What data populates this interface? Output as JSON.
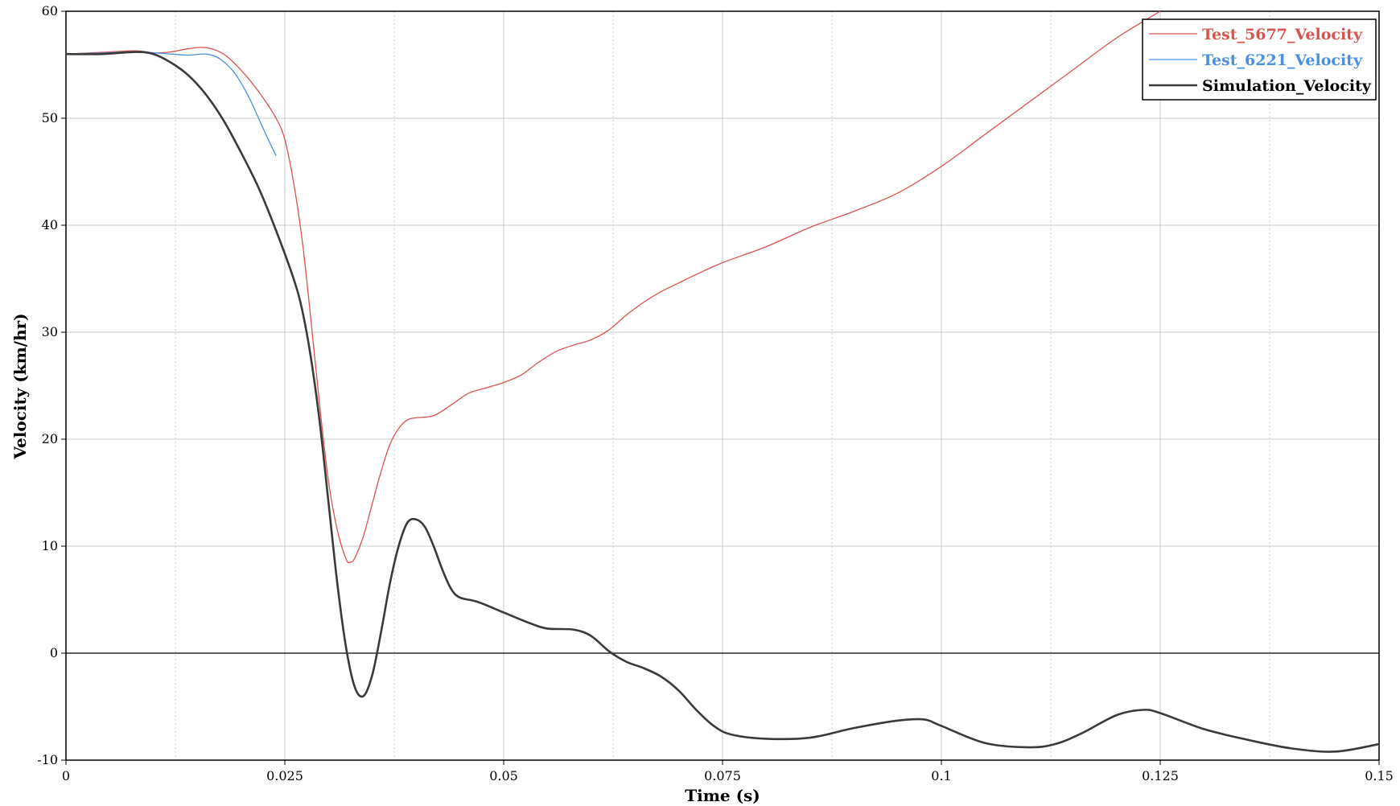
{
  "chart_data": {
    "type": "line",
    "xlabel": "Time (s)",
    "ylabel": "Velocity (km/hr)",
    "xlim": [
      0,
      0.15
    ],
    "ylim": [
      -10,
      60
    ],
    "x_ticks": [
      {
        "value": 0,
        "label": "0"
      },
      {
        "value": 0.025,
        "label": "0.025"
      },
      {
        "value": 0.05,
        "label": "0.05"
      },
      {
        "value": 0.075,
        "label": "0.075"
      },
      {
        "value": 0.1,
        "label": "0.1"
      },
      {
        "value": 0.125,
        "label": "0.125"
      },
      {
        "value": 0.15,
        "label": "0.15"
      }
    ],
    "y_ticks": [
      {
        "value": -10,
        "label": "-10"
      },
      {
        "value": 0,
        "label": "0"
      },
      {
        "value": 10,
        "label": "10"
      },
      {
        "value": 20,
        "label": "20"
      },
      {
        "value": 30,
        "label": "30"
      },
      {
        "value": 40,
        "label": "40"
      },
      {
        "value": 50,
        "label": "50"
      },
      {
        "value": 60,
        "label": "60"
      }
    ],
    "x_minor_grid": [
      0.0125,
      0.0375,
      0.0625,
      0.0875,
      0.1125,
      0.1375
    ],
    "grid": true,
    "legend_position": "top-right",
    "series": [
      {
        "name": "Test_5677_Velocity",
        "color": "#d9534f",
        "points": [
          [
            0,
            56.0
          ],
          [
            0.005,
            56.2
          ],
          [
            0.008,
            56.3
          ],
          [
            0.01,
            56.1
          ],
          [
            0.012,
            56.2
          ],
          [
            0.014,
            56.5
          ],
          [
            0.016,
            56.6
          ],
          [
            0.018,
            56.0
          ],
          [
            0.02,
            54.5
          ],
          [
            0.022,
            52.5
          ],
          [
            0.024,
            50.0
          ],
          [
            0.025,
            48.0
          ],
          [
            0.026,
            44.0
          ],
          [
            0.027,
            38.5
          ],
          [
            0.028,
            31.0
          ],
          [
            0.029,
            23.0
          ],
          [
            0.03,
            16.0
          ],
          [
            0.031,
            11.5
          ],
          [
            0.032,
            8.8
          ],
          [
            0.0325,
            8.5
          ],
          [
            0.033,
            8.9
          ],
          [
            0.034,
            11.0
          ],
          [
            0.035,
            14.0
          ],
          [
            0.036,
            17.0
          ],
          [
            0.037,
            19.5
          ],
          [
            0.038,
            21.0
          ],
          [
            0.039,
            21.8
          ],
          [
            0.04,
            22.0
          ],
          [
            0.042,
            22.2
          ],
          [
            0.044,
            23.2
          ],
          [
            0.046,
            24.3
          ],
          [
            0.048,
            24.8
          ],
          [
            0.05,
            25.3
          ],
          [
            0.052,
            26.0
          ],
          [
            0.054,
            27.2
          ],
          [
            0.056,
            28.2
          ],
          [
            0.058,
            28.8
          ],
          [
            0.06,
            29.3
          ],
          [
            0.062,
            30.2
          ],
          [
            0.064,
            31.6
          ],
          [
            0.066,
            32.8
          ],
          [
            0.068,
            33.8
          ],
          [
            0.07,
            34.6
          ],
          [
            0.072,
            35.4
          ],
          [
            0.075,
            36.5
          ],
          [
            0.08,
            38.0
          ],
          [
            0.085,
            39.8
          ],
          [
            0.09,
            41.3
          ],
          [
            0.095,
            43.0
          ],
          [
            0.1,
            45.5
          ],
          [
            0.105,
            48.5
          ],
          [
            0.11,
            51.5
          ],
          [
            0.115,
            54.5
          ],
          [
            0.12,
            57.5
          ],
          [
            0.125,
            60.0
          ]
        ]
      },
      {
        "name": "Test_6221_Velocity",
        "color": "#4a90e2",
        "points": [
          [
            0,
            56.0
          ],
          [
            0.004,
            56.1
          ],
          [
            0.008,
            56.2
          ],
          [
            0.012,
            56.0
          ],
          [
            0.014,
            55.9
          ],
          [
            0.016,
            56.0
          ],
          [
            0.0175,
            55.6
          ],
          [
            0.019,
            54.5
          ],
          [
            0.02,
            53.3
          ],
          [
            0.021,
            51.8
          ],
          [
            0.022,
            50.0
          ],
          [
            0.023,
            48.2
          ],
          [
            0.024,
            46.5
          ]
        ]
      },
      {
        "name": "Simulation_Velocity",
        "color": "#3a3a3a",
        "points": [
          [
            0,
            56.0
          ],
          [
            0.004,
            56.0
          ],
          [
            0.008,
            56.2
          ],
          [
            0.01,
            56.0
          ],
          [
            0.012,
            55.2
          ],
          [
            0.014,
            54.0
          ],
          [
            0.016,
            52.2
          ],
          [
            0.018,
            49.8
          ],
          [
            0.02,
            46.8
          ],
          [
            0.022,
            43.5
          ],
          [
            0.024,
            39.5
          ],
          [
            0.026,
            35.0
          ],
          [
            0.027,
            32.0
          ],
          [
            0.028,
            27.5
          ],
          [
            0.029,
            21.5
          ],
          [
            0.03,
            14.0
          ],
          [
            0.031,
            6.5
          ],
          [
            0.032,
            0.5
          ],
          [
            0.033,
            -3.2
          ],
          [
            0.034,
            -4.0
          ],
          [
            0.035,
            -2.0
          ],
          [
            0.036,
            2.0
          ],
          [
            0.037,
            6.5
          ],
          [
            0.038,
            10.0
          ],
          [
            0.039,
            12.2
          ],
          [
            0.04,
            12.5
          ],
          [
            0.041,
            11.8
          ],
          [
            0.042,
            10.0
          ],
          [
            0.043,
            7.8
          ],
          [
            0.044,
            6.0
          ],
          [
            0.045,
            5.2
          ],
          [
            0.047,
            4.8
          ],
          [
            0.05,
            3.8
          ],
          [
            0.053,
            2.8
          ],
          [
            0.055,
            2.3
          ],
          [
            0.058,
            2.2
          ],
          [
            0.06,
            1.6
          ],
          [
            0.062,
            0.2
          ],
          [
            0.064,
            -0.8
          ],
          [
            0.066,
            -1.4
          ],
          [
            0.068,
            -2.2
          ],
          [
            0.07,
            -3.5
          ],
          [
            0.072,
            -5.3
          ],
          [
            0.074,
            -6.8
          ],
          [
            0.076,
            -7.6
          ],
          [
            0.08,
            -8.0
          ],
          [
            0.085,
            -7.9
          ],
          [
            0.09,
            -7.0
          ],
          [
            0.095,
            -6.3
          ],
          [
            0.098,
            -6.2
          ],
          [
            0.1,
            -6.8
          ],
          [
            0.105,
            -8.4
          ],
          [
            0.11,
            -8.8
          ],
          [
            0.113,
            -8.5
          ],
          [
            0.116,
            -7.5
          ],
          [
            0.12,
            -5.8
          ],
          [
            0.123,
            -5.3
          ],
          [
            0.125,
            -5.6
          ],
          [
            0.13,
            -7.1
          ],
          [
            0.135,
            -8.1
          ],
          [
            0.14,
            -8.9
          ],
          [
            0.145,
            -9.2
          ],
          [
            0.15,
            -8.5
          ]
        ]
      }
    ]
  }
}
